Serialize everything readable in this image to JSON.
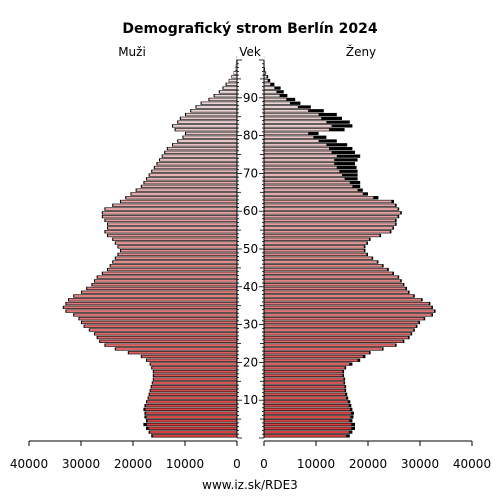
{
  "chart_data": {
    "type": "bar",
    "title": "Demografický strom Berlín 2024",
    "left_label": "Muži",
    "center_label": "Vek",
    "right_label": "Ženy",
    "source": "www.iz.sk/RDE3",
    "x_max": 40000,
    "y_range": [
      0,
      100
    ],
    "age_ticks": [
      "10",
      "20",
      "30",
      "40",
      "50",
      "60",
      "70",
      "80",
      "90"
    ],
    "x_ticks_left": [
      "40000",
      "30000",
      "20000",
      "10000",
      "0"
    ],
    "x_ticks_right": [
      "0",
      "10000",
      "20000",
      "30000",
      "40000"
    ],
    "ages": [
      0,
      1,
      2,
      3,
      4,
      5,
      6,
      7,
      8,
      9,
      10,
      11,
      12,
      13,
      14,
      15,
      16,
      17,
      18,
      19,
      20,
      21,
      22,
      23,
      24,
      25,
      26,
      27,
      28,
      29,
      30,
      31,
      32,
      33,
      34,
      35,
      36,
      37,
      38,
      39,
      40,
      41,
      42,
      43,
      44,
      45,
      46,
      47,
      48,
      49,
      50,
      51,
      52,
      53,
      54,
      55,
      56,
      57,
      58,
      59,
      60,
      61,
      62,
      63,
      64,
      65,
      66,
      67,
      68,
      69,
      70,
      71,
      72,
      73,
      74,
      75,
      76,
      77,
      78,
      79,
      80,
      81,
      82,
      83,
      84,
      85,
      86,
      87,
      88,
      89,
      90,
      91,
      92,
      93,
      94,
      95,
      96,
      97,
      98,
      99,
      100
    ],
    "series": [
      {
        "name": "Muži",
        "values": [
          16500,
          17000,
          17500,
          18000,
          17500,
          17800,
          17800,
          18000,
          17800,
          17500,
          17200,
          17000,
          16800,
          16600,
          16400,
          16200,
          16200,
          16200,
          16500,
          16800,
          17500,
          18500,
          21000,
          23500,
          25500,
          26500,
          27000,
          27500,
          28500,
          29500,
          30000,
          30500,
          31500,
          33000,
          33500,
          33000,
          32500,
          31500,
          30000,
          29000,
          28000,
          27500,
          27000,
          26000,
          25000,
          24500,
          24000,
          23500,
          23000,
          22500,
          23000,
          23500,
          24000,
          25000,
          25500,
          25000,
          25000,
          25500,
          26000,
          26000,
          25500,
          24000,
          22500,
          21500,
          20500,
          19500,
          18500,
          18000,
          17500,
          17000,
          16500,
          16000,
          15500,
          15000,
          14500,
          14000,
          13500,
          12500,
          11500,
          10500,
          10000,
          12000,
          12500,
          11500,
          11000,
          10000,
          9000,
          8000,
          7000,
          5500,
          4500,
          3500,
          2800,
          2200,
          1600,
          1100,
          700,
          400,
          250,
          150,
          80
        ],
        "model": [
          16200,
          16700,
          17000,
          17300,
          17200,
          17400,
          17500,
          17600,
          17500,
          17300,
          17000,
          16800,
          16600,
          16400,
          16200,
          16000,
          16000,
          16000,
          16300,
          16600,
          17300,
          18300,
          20800,
          23300,
          25300,
          26300,
          26800,
          27300,
          28300,
          29300,
          29800,
          30300,
          31300,
          32800,
          33300,
          32800,
          32300,
          31300,
          29800,
          28800,
          27800,
          27300,
          26800,
          25800,
          24800,
          24300,
          23800,
          23300,
          22800,
          22300,
          22800,
          23300,
          23800,
          24800,
          25300,
          24800,
          24800,
          25300,
          25800,
          25800,
          25300,
          23800,
          22300,
          21300,
          20300,
          19300,
          18300,
          17800,
          17300,
          16800,
          16300,
          15800,
          15300,
          14800,
          14300,
          13800,
          13300,
          12300,
          11300,
          10300,
          9800,
          11800,
          12300,
          11300,
          10800,
          9800,
          8800,
          7800,
          6800,
          5300,
          4300,
          3300,
          2600,
          2000,
          1500,
          1000,
          650,
          380,
          240,
          140,
          75
        ]
      },
      {
        "name": "Ženy",
        "values": [
          16500,
          17000,
          17500,
          17500,
          17000,
          17200,
          17300,
          17000,
          16800,
          16600,
          16200,
          16000,
          15800,
          15800,
          15600,
          15600,
          15400,
          15400,
          15800,
          17000,
          18500,
          19500,
          20500,
          23000,
          25500,
          27000,
          28000,
          28500,
          29000,
          29500,
          30000,
          31000,
          32500,
          33000,
          32500,
          32000,
          30500,
          29000,
          28000,
          27500,
          27000,
          26500,
          26000,
          25000,
          24000,
          23000,
          22000,
          21000,
          20000,
          19500,
          19500,
          20000,
          20500,
          22500,
          24500,
          25000,
          25500,
          25500,
          26000,
          26500,
          26000,
          25500,
          25000,
          22000,
          20000,
          19000,
          18500,
          18500,
          18000,
          18000,
          18000,
          17800,
          17500,
          18000,
          18500,
          17500,
          17000,
          16000,
          14000,
          12000,
          10500,
          15500,
          17000,
          16500,
          15000,
          14000,
          11500,
          9000,
          7000,
          6000,
          4500,
          3800,
          3200,
          2000,
          1200,
          800,
          400,
          200,
          100,
          50,
          20
        ],
        "model": [
          15800,
          16300,
          16800,
          16800,
          16400,
          16600,
          16700,
          16500,
          16300,
          16100,
          15800,
          15600,
          15500,
          15500,
          15300,
          15300,
          15100,
          15100,
          15500,
          16400,
          18000,
          19000,
          20200,
          22700,
          25200,
          26700,
          27700,
          28200,
          28700,
          29200,
          29700,
          30700,
          32200,
          32700,
          32200,
          31700,
          30200,
          28700,
          27700,
          27200,
          26700,
          26200,
          25700,
          24700,
          23700,
          22700,
          21700,
          20700,
          19700,
          19200,
          19200,
          19700,
          20200,
          22200,
          24200,
          24700,
          25200,
          25200,
          25700,
          26200,
          25700,
          25200,
          24500,
          21000,
          19000,
          18000,
          17000,
          16500,
          15500,
          15000,
          14500,
          14000,
          13500,
          13500,
          14000,
          13000,
          12500,
          12000,
          10500,
          9500,
          8500,
          12500,
          13000,
          12000,
          11000,
          10500,
          8500,
          6500,
          5000,
          4300,
          3000,
          2400,
          2000,
          1200,
          700,
          500,
          250,
          120,
          60,
          30,
          10
        ]
      }
    ]
  }
}
